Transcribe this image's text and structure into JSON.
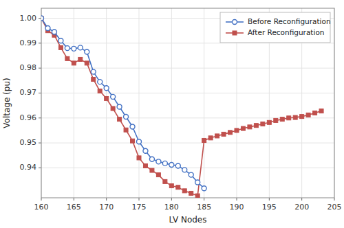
{
  "chart_data": {
    "type": "line",
    "xlabel": "LV Nodes",
    "ylabel": "Voltage (pu)",
    "series": [
      {
        "name": "Before Reconfiguration",
        "color": "#4472c4",
        "marker": "circle",
        "x": [
          160,
          161,
          162,
          163,
          164,
          165,
          166,
          167,
          168,
          169,
          170,
          171,
          172,
          173,
          174,
          175,
          176,
          177,
          178,
          179,
          180,
          181,
          182,
          183,
          184,
          185
        ],
        "values": [
          1.0,
          0.996,
          0.9945,
          0.991,
          0.988,
          0.9878,
          0.9882,
          0.9865,
          0.9785,
          0.9745,
          0.972,
          0.9685,
          0.9645,
          0.9605,
          0.9565,
          0.9505,
          0.9468,
          0.9435,
          0.9425,
          0.9418,
          0.9412,
          0.9408,
          0.9392,
          0.9372,
          0.9342,
          0.9318
        ]
      },
      {
        "name": "After Reconfiguration",
        "color": "#c0504d",
        "marker": "square",
        "x": [
          160,
          161,
          162,
          163,
          164,
          165,
          166,
          167,
          168,
          169,
          170,
          171,
          172,
          173,
          174,
          175,
          176,
          177,
          178,
          179,
          180,
          181,
          182,
          183,
          184,
          185,
          186,
          187,
          188,
          189,
          190,
          191,
          192,
          193,
          194,
          195,
          196,
          197,
          198,
          199,
          200,
          201,
          202,
          203
        ],
        "values": [
          1.0,
          0.995,
          0.9932,
          0.9882,
          0.9838,
          0.982,
          0.9835,
          0.982,
          0.9755,
          0.9708,
          0.9678,
          0.9638,
          0.9595,
          0.9552,
          0.9508,
          0.944,
          0.9408,
          0.939,
          0.9372,
          0.9345,
          0.9328,
          0.9322,
          0.9308,
          0.9298,
          0.9288,
          0.951,
          0.952,
          0.9528,
          0.9535,
          0.9542,
          0.955,
          0.9558,
          0.9564,
          0.957,
          0.9576,
          0.9582,
          0.959,
          0.9595,
          0.96,
          0.9602,
          0.9606,
          0.9612,
          0.962,
          0.9628
        ]
      }
    ],
    "xlim": [
      160,
      205
    ],
    "ylim": [
      0.928,
      1.004
    ],
    "xticks": [
      160,
      165,
      170,
      175,
      180,
      185,
      190,
      195,
      200,
      205
    ],
    "yticks": [
      0.94,
      0.95,
      0.96,
      0.97,
      0.98,
      0.99,
      {
        "value": 1,
        "label": "1.00"
      }
    ],
    "grid": true,
    "legend": "upper right"
  }
}
